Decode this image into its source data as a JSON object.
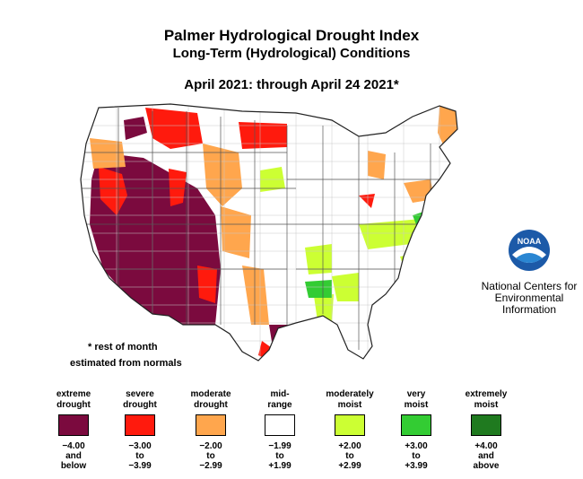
{
  "title": "Palmer Hydrological Drought Index",
  "subtitle": "Long-Term (Hydrological) Conditions",
  "period": "April 2021: through April 24 2021*",
  "footnote": {
    "line1": "* rest of month",
    "line2": "estimated from normals"
  },
  "organization": {
    "logo_text": "NOAA",
    "name_line1": "National Centers for",
    "name_line2": "Environmental",
    "name_line3": "Information"
  },
  "legend": [
    {
      "label": "extreme\ndrought",
      "range": "−4.00\nand\nbelow",
      "color": "#7b0a3e"
    },
    {
      "label": "severe\ndrought",
      "range": "−3.00\nto\n−3.99",
      "color": "#ff1a0d"
    },
    {
      "label": "moderate\ndrought",
      "range": "−2.00\nto\n−2.99",
      "color": "#ffa64d"
    },
    {
      "label": "mid-\nrange",
      "range": "−1.99\nto\n+1.99",
      "color": "#ffffff"
    },
    {
      "label": "moderately\nmoist",
      "range": "+2.00\nto\n+2.99",
      "color": "#ccff33"
    },
    {
      "label": "very\nmoist",
      "range": "+3.00\nto\n+3.99",
      "color": "#33cc33"
    },
    {
      "label": "extremely\nmoist",
      "range": "+4.00\nand\nabove",
      "color": "#1f7a1f"
    }
  ]
}
